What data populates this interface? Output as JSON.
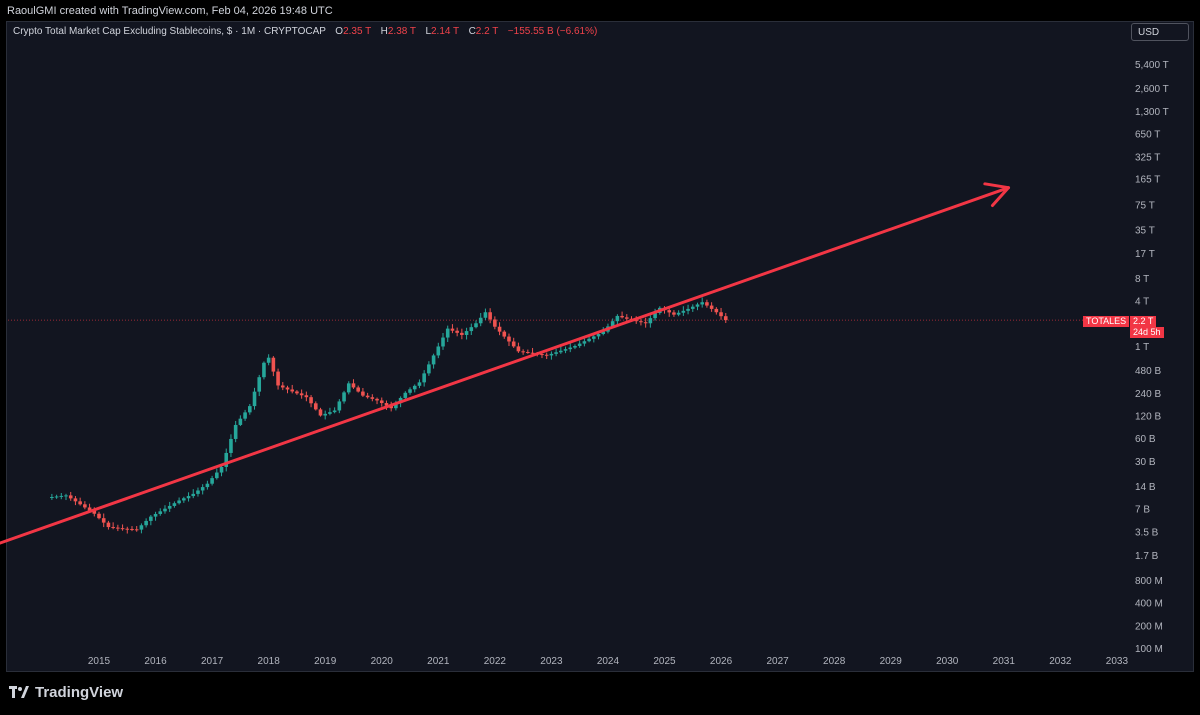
{
  "header": {
    "caption": "RaoulGMI created with TradingView.com, Feb 04, 2026 19:48 UTC"
  },
  "legend": {
    "title": "Crypto Total Market Cap Excluding Stablecoins, $ · 1M · CRYPTOCAP",
    "o_label": "O",
    "o_value": "2.35 T",
    "h_label": "H",
    "h_value": "2.38 T",
    "l_label": "L",
    "l_value": "2.14 T",
    "c_label": "C",
    "c_value": "2.2 T",
    "change": "−155.55 B (−6.61%)"
  },
  "currency_button": "USD",
  "price_tag": {
    "symbol": "TOTALES",
    "price": "2.2 T",
    "countdown": "24d 5h"
  },
  "branding": {
    "name": "TradingView"
  },
  "colors": {
    "background": "#121520",
    "up": "#26a69a",
    "down": "#ef5350",
    "trendline": "#f23645",
    "axis_text": "#b2b5be"
  },
  "chart_data": {
    "type": "candlestick",
    "scale": "log",
    "ylabel_ticks": [
      "5,400 T",
      "2,600 T",
      "1,300 T",
      "650 T",
      "325 T",
      "165 T",
      "75 T",
      "35 T",
      "17 T",
      "8 T",
      "4 T",
      "1 T",
      "480 B",
      "240 B",
      "120 B",
      "60 B",
      "30 B",
      "14 B",
      "7 B",
      "3.5 B",
      "1.7 B",
      "800 M",
      "400 M",
      "200 M",
      "100 M"
    ],
    "y_tick_values_usd": [
      5400000000000000.0,
      2600000000000000.0,
      1300000000000000.0,
      650000000000000.0,
      325000000000000.0,
      165000000000000.0,
      75000000000000.0,
      35000000000000.0,
      17000000000000.0,
      8000000000000.0,
      4000000000000.0,
      1000000000000.0,
      480000000000.0,
      240000000000.0,
      120000000000.0,
      60000000000.0,
      30000000000.0,
      14000000000.0,
      7000000000.0,
      3500000000.0,
      1700000000.0,
      800000000.0,
      400000000.0,
      200000000.0,
      100000000.0
    ],
    "x_ticks": [
      "2015",
      "2016",
      "2017",
      "2018",
      "2019",
      "2020",
      "2021",
      "2022",
      "2023",
      "2024",
      "2025",
      "2026",
      "2027",
      "2028",
      "2029",
      "2030",
      "2031",
      "2032",
      "2033"
    ],
    "series": [
      {
        "name": "TOTALES",
        "note": "approximate monthly closes (USD) read off log axis",
        "points": [
          [
            "2014-03",
            10000000000.0
          ],
          [
            "2014-06",
            10500000000.0
          ],
          [
            "2014-09",
            8000000000.0
          ],
          [
            "2014-12",
            6000000000.0
          ],
          [
            "2015-03",
            4000000000.0
          ],
          [
            "2015-06",
            3800000000.0
          ],
          [
            "2015-09",
            3700000000.0
          ],
          [
            "2015-12",
            5500000000.0
          ],
          [
            "2016-03",
            7000000000.0
          ],
          [
            "2016-06",
            9000000000.0
          ],
          [
            "2016-09",
            11000000000.0
          ],
          [
            "2016-12",
            15000000000.0
          ],
          [
            "2017-03",
            25000000000.0
          ],
          [
            "2017-06",
            90000000000.0
          ],
          [
            "2017-09",
            160000000000.0
          ],
          [
            "2017-12",
            600000000000.0
          ],
          [
            "2018-01",
            700000000000.0
          ],
          [
            "2018-03",
            300000000000.0
          ],
          [
            "2018-06",
            250000000000.0
          ],
          [
            "2018-09",
            210000000000.0
          ],
          [
            "2018-12",
            120000000000.0
          ],
          [
            "2019-03",
            140000000000.0
          ],
          [
            "2019-06",
            320000000000.0
          ],
          [
            "2019-09",
            220000000000.0
          ],
          [
            "2019-12",
            190000000000.0
          ],
          [
            "2020-03",
            150000000000.0
          ],
          [
            "2020-06",
            240000000000.0
          ],
          [
            "2020-09",
            330000000000.0
          ],
          [
            "2020-12",
            750000000000.0
          ],
          [
            "2021-03",
            1700000000000.0
          ],
          [
            "2021-06",
            1400000000000.0
          ],
          [
            "2021-09",
            2000000000000.0
          ],
          [
            "2021-11",
            2800000000000.0
          ],
          [
            "2022-01",
            1800000000000.0
          ],
          [
            "2022-06",
            850000000000.0
          ],
          [
            "2022-12",
            750000000000.0
          ],
          [
            "2023-06",
            1000000000000.0
          ],
          [
            "2023-12",
            1550000000000.0
          ],
          [
            "2024-03",
            2500000000000.0
          ],
          [
            "2024-06",
            2200000000000.0
          ],
          [
            "2024-09",
            2000000000000.0
          ],
          [
            "2024-12",
            3200000000000.0
          ],
          [
            "2025-03",
            2600000000000.0
          ],
          [
            "2025-06",
            3100000000000.0
          ],
          [
            "2025-09",
            3800000000000.0
          ],
          [
            "2025-12",
            2800000000000.0
          ],
          [
            "2026-02",
            2200000000000.0
          ]
        ]
      }
    ],
    "trendline": {
      "label": "",
      "from": [
        "2014-03",
        2200000000.0
      ],
      "to": [
        "2031-02",
        125000000000000.0
      ],
      "arrow": true
    },
    "last_price_line": 2200000000000.0
  }
}
